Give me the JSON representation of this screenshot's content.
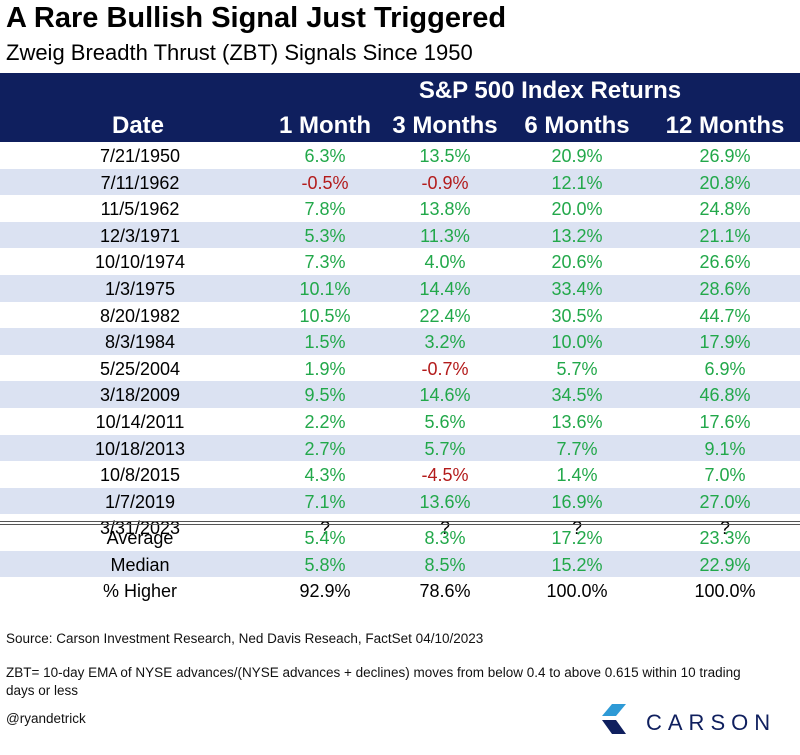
{
  "chart_data": {
    "type": "table",
    "title": "A Rare Bullish Signal Just Triggered",
    "subtitle": "Zweig Breadth Thrust (ZBT) Signals Since 1950",
    "group_header": "S&P 500 Index Returns",
    "columns": [
      "Date",
      "1 Month",
      "3 Months",
      "6 Months",
      "12 Months"
    ],
    "rows": [
      [
        "7/21/1950",
        "6.3%",
        "13.5%",
        "20.9%",
        "26.9%"
      ],
      [
        "7/11/1962",
        "-0.5%",
        "-0.9%",
        "12.1%",
        "20.8%"
      ],
      [
        "11/5/1962",
        "7.8%",
        "13.8%",
        "20.0%",
        "24.8%"
      ],
      [
        "12/3/1971",
        "5.3%",
        "11.3%",
        "13.2%",
        "21.1%"
      ],
      [
        "10/10/1974",
        "7.3%",
        "4.0%",
        "20.6%",
        "26.6%"
      ],
      [
        "1/3/1975",
        "10.1%",
        "14.4%",
        "33.4%",
        "28.6%"
      ],
      [
        "8/20/1982",
        "10.5%",
        "22.4%",
        "30.5%",
        "44.7%"
      ],
      [
        "8/3/1984",
        "1.5%",
        "3.2%",
        "10.0%",
        "17.9%"
      ],
      [
        "5/25/2004",
        "1.9%",
        "-0.7%",
        "5.7%",
        "6.9%"
      ],
      [
        "3/18/2009",
        "9.5%",
        "14.6%",
        "34.5%",
        "46.8%"
      ],
      [
        "10/14/2011",
        "2.2%",
        "5.6%",
        "13.6%",
        "17.6%"
      ],
      [
        "10/18/2013",
        "2.7%",
        "5.7%",
        "7.7%",
        "9.1%"
      ],
      [
        "10/8/2015",
        "4.3%",
        "-4.5%",
        "1.4%",
        "7.0%"
      ],
      [
        "1/7/2019",
        "7.1%",
        "13.6%",
        "16.9%",
        "27.0%"
      ],
      [
        "3/31/2023",
        "?",
        "?",
        "?",
        "?"
      ]
    ],
    "summary": [
      [
        "Average",
        "5.4%",
        "8.3%",
        "17.2%",
        "23.3%"
      ],
      [
        "Median",
        "5.8%",
        "8.5%",
        "15.2%",
        "22.9%"
      ],
      [
        "% Higher",
        "92.9%",
        "78.6%",
        "100.0%",
        "100.0%"
      ]
    ]
  },
  "footer": {
    "source": "Source: Carson Investment Research, Ned Davis Reseach, FactSet 04/10/2023",
    "note_line1": "ZBT= 10-day EMA of NYSE advances/(NYSE advances + declines) moves from below 0.4 to above 0.615 within 10 trading",
    "note_line2": "days or less",
    "handle": "@ryandetrick"
  },
  "logo": {
    "name": "CARSON"
  },
  "colors": {
    "header_bg": "#0f1f5e",
    "alt_row": "#dbe2f2",
    "positive": "#22a84a",
    "negative": "#b31b1b"
  }
}
